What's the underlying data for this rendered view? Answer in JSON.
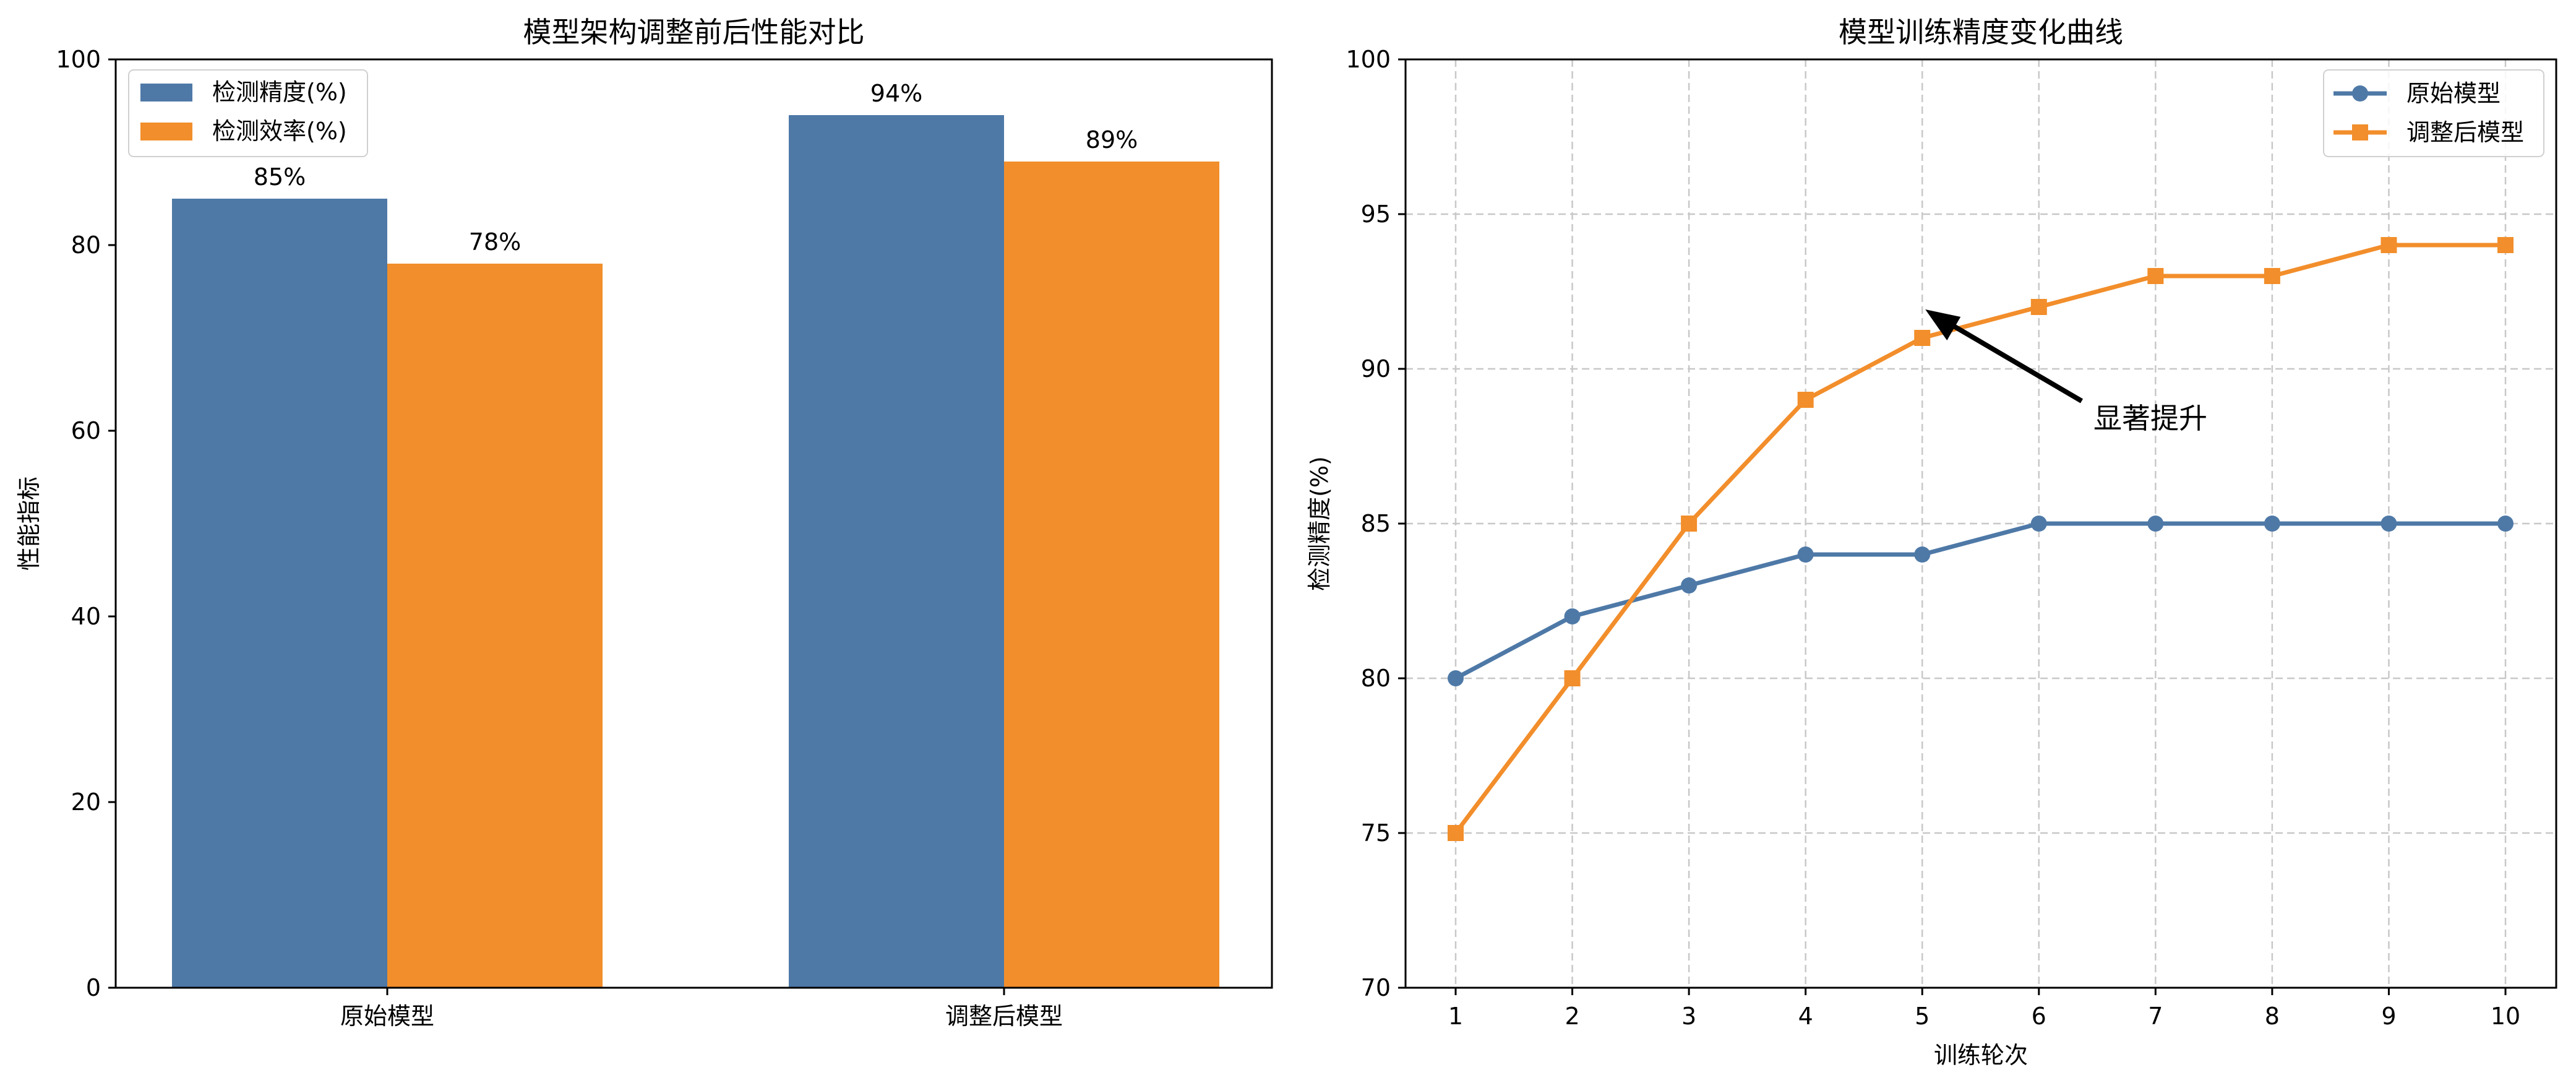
{
  "chart_data": [
    {
      "type": "bar",
      "title": "模型架构调整前后性能对比",
      "xlabel": "",
      "ylabel": "性能指标",
      "categories": [
        "原始模型",
        "调整后模型"
      ],
      "series": [
        {
          "name": "检测精度(%)",
          "values": [
            85,
            94
          ],
          "color": "#4e79a7"
        },
        {
          "name": "检测效率(%)",
          "values": [
            78,
            89
          ],
          "color": "#f28e2b"
        }
      ],
      "data_labels": [
        [
          "85%",
          "94%"
        ],
        [
          "78%",
          "89%"
        ]
      ],
      "ylim": [
        0,
        100
      ],
      "yticks": [
        0,
        20,
        40,
        60,
        80,
        100
      ],
      "legend": "top-left",
      "grid": false
    },
    {
      "type": "line",
      "title": "模型训练精度变化曲线",
      "xlabel": "训练轮次",
      "ylabel": "检测精度(%)",
      "x": [
        1,
        2,
        3,
        4,
        5,
        6,
        7,
        8,
        9,
        10
      ],
      "series": [
        {
          "name": "原始模型",
          "values": [
            80,
            82,
            83,
            84,
            84,
            85,
            85,
            85,
            85,
            85
          ],
          "color": "#4e79a7",
          "marker": "circle"
        },
        {
          "name": "调整后模型",
          "values": [
            75,
            80,
            85,
            89,
            91,
            92,
            93,
            93,
            94,
            94
          ],
          "color": "#f28e2b",
          "marker": "square"
        }
      ],
      "ylim": [
        70,
        100
      ],
      "yticks": [
        70,
        75,
        80,
        85,
        90,
        95,
        100
      ],
      "xticks": [
        1,
        2,
        3,
        4,
        5,
        6,
        7,
        8,
        9,
        10
      ],
      "annotation": {
        "text": "显著提升",
        "x": 5,
        "y": 92
      },
      "legend": "top-right",
      "grid": true
    }
  ]
}
